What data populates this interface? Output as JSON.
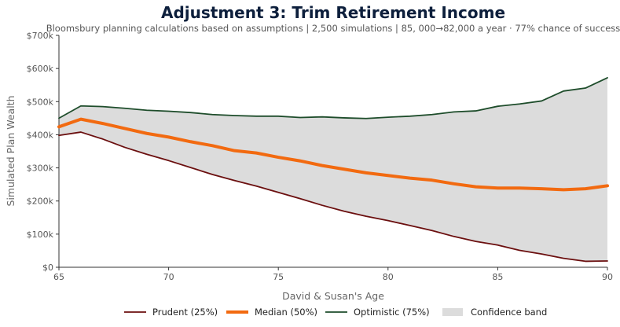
{
  "chart_data": {
    "type": "area",
    "title": "Adjustment 3: Trim Retirement Income",
    "subtitle": "Bloomsbury planning calculations based on assumptions | 2,500 simulations | 85, 000→82,000 a year · 77% chance of success",
    "xlabel": "David & Susan's Age",
    "ylabel": "Simulated Plan Wealth",
    "xlim": [
      65,
      90
    ],
    "ylim": [
      0,
      700000
    ],
    "xticks": [
      65,
      70,
      75,
      80,
      85,
      90
    ],
    "xtick_labels": [
      "65",
      "70",
      "75",
      "80",
      "85",
      "90"
    ],
    "yticks": [
      0,
      100000,
      200000,
      300000,
      400000,
      500000,
      600000,
      700000
    ],
    "ytick_labels": [
      "$0",
      "$100k",
      "$200k",
      "$300k",
      "$400k",
      "$500k",
      "$600k",
      "$700k"
    ],
    "grid": false,
    "legend_position": "bottom",
    "x": [
      65,
      66,
      67,
      68,
      69,
      70,
      71,
      72,
      73,
      74,
      75,
      76,
      77,
      78,
      79,
      80,
      81,
      82,
      83,
      84,
      85,
      86,
      87,
      88,
      89,
      90
    ],
    "series": [
      {
        "name": "Prudent (25%)",
        "color": "#6b0f0f",
        "width": 1.8,
        "values": [
          398000,
          408000,
          387000,
          362000,
          341000,
          322000,
          301000,
          280000,
          262000,
          245000,
          226000,
          207000,
          187000,
          169000,
          154000,
          141000,
          126000,
          111000,
          93000,
          78000,
          67000,
          51000,
          40000,
          27000,
          18000,
          19000
        ]
      },
      {
        "name": "Median (50%)",
        "color": "#f26a10",
        "width": 4,
        "values": [
          424000,
          447000,
          434000,
          419000,
          404000,
          393000,
          379000,
          367000,
          352000,
          345000,
          332000,
          321000,
          307000,
          296000,
          285000,
          277000,
          269000,
          263000,
          252000,
          243000,
          239000,
          239000,
          237000,
          234000,
          237000,
          246000
        ]
      },
      {
        "name": "Optimistic (75%)",
        "color": "#1e4d2b",
        "width": 1.8,
        "values": [
          450000,
          487000,
          485000,
          480000,
          474000,
          471000,
          467000,
          461000,
          458000,
          456000,
          456000,
          452000,
          454000,
          451000,
          449000,
          453000,
          456000,
          461000,
          469000,
          472000,
          486000,
          493000,
          502000,
          532000,
          541000,
          572000
        ]
      }
    ],
    "band": {
      "name": "Confidence band",
      "color": "#dcdcdc",
      "lower_series": "Prudent (25%)",
      "upper_series": "Optimistic (75%)"
    }
  }
}
